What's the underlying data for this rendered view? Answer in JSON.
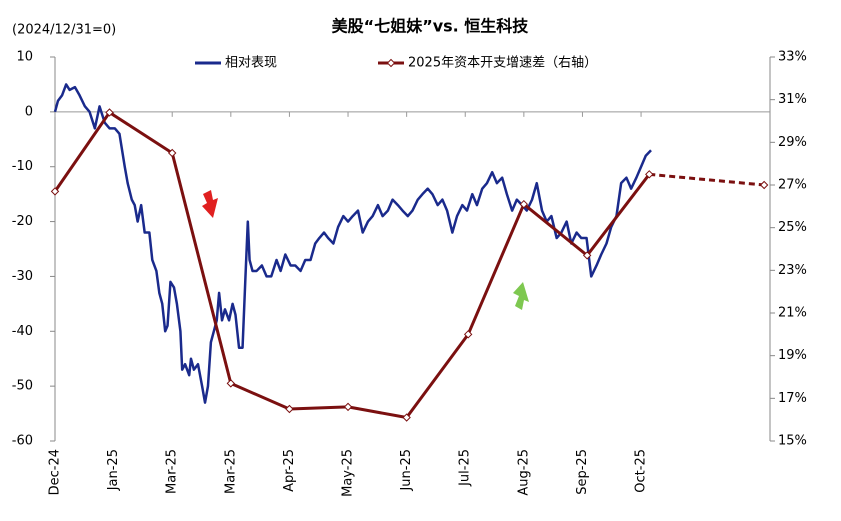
{
  "chart_data": {
    "type": "line",
    "title": "美股“七姐妹”vs. 恒生科技",
    "subtitle": "(2024/12/31=0)",
    "xlim": [
      0,
      12.2
    ],
    "xticks": [
      {
        "value": 0,
        "label": "Dec-24"
      },
      {
        "value": 1,
        "label": "Jan-25"
      },
      {
        "value": 2,
        "label": "Mar-25"
      },
      {
        "value": 3,
        "label": "Mar-25"
      },
      {
        "value": 4,
        "label": "Apr-25"
      },
      {
        "value": 5,
        "label": "May-25"
      },
      {
        "value": 6,
        "label": "Jun-25"
      },
      {
        "value": 7,
        "label": "Jul-25"
      },
      {
        "value": 8,
        "label": "Aug-25"
      },
      {
        "value": 9,
        "label": "Sep-25"
      },
      {
        "value": 10,
        "label": "Oct-25"
      }
    ],
    "ylim": [
      -60,
      10
    ],
    "yticks": [
      10,
      0,
      -10,
      -20,
      -30,
      -40,
      -50,
      -60
    ],
    "y2lim": [
      15,
      33
    ],
    "y2ticks": [
      {
        "value": 33,
        "label": "33%"
      },
      {
        "value": 31,
        "label": "31%"
      },
      {
        "value": 29,
        "label": "29%"
      },
      {
        "value": 27,
        "label": "27%"
      },
      {
        "value": 25,
        "label": "25%"
      },
      {
        "value": 23,
        "label": "23%"
      },
      {
        "value": 21,
        "label": "21%"
      },
      {
        "value": 19,
        "label": "19%"
      },
      {
        "value": 17,
        "label": "17%"
      },
      {
        "value": 15,
        "label": "15%"
      }
    ],
    "series": [
      {
        "name": "相对表现",
        "color": "#1a2a8c",
        "x": [
          0,
          0.05,
          0.12,
          0.19,
          0.25,
          0.34,
          0.42,
          0.51,
          0.59,
          0.68,
          0.76,
          0.85,
          0.93,
          1.02,
          1.1,
          1.19,
          1.24,
          1.31,
          1.36,
          1.41,
          1.47,
          1.53,
          1.61,
          1.66,
          1.73,
          1.78,
          1.83,
          1.88,
          1.92,
          1.97,
          2.03,
          2.08,
          2.14,
          2.17,
          2.22,
          2.29,
          2.32,
          2.37,
          2.44,
          2.51,
          2.56,
          2.61,
          2.66,
          2.71,
          2.76,
          2.8,
          2.85,
          2.9,
          2.97,
          3.03,
          3.08,
          3.14,
          3.2,
          3.25,
          3.29,
          3.32,
          3.37,
          3.44,
          3.53,
          3.61,
          3.69,
          3.78,
          3.85,
          3.93,
          4.02,
          4.1,
          4.19,
          4.27,
          4.36,
          4.44,
          4.51,
          4.59,
          4.66,
          4.75,
          4.83,
          4.92,
          5.0,
          5.08,
          5.17,
          5.25,
          5.34,
          5.42,
          5.51,
          5.59,
          5.68,
          5.76,
          5.85,
          5.93,
          6.02,
          6.1,
          6.19,
          6.27,
          6.36,
          6.44,
          6.53,
          6.61,
          6.69,
          6.78,
          6.86,
          6.95,
          7.03,
          7.12,
          7.2,
          7.29,
          7.37,
          7.46,
          7.54,
          7.63,
          7.71,
          7.8,
          7.88,
          7.97,
          8.05,
          8.14,
          8.22,
          8.31,
          8.39,
          8.47,
          8.56,
          8.64,
          8.73,
          8.81,
          8.9,
          8.98,
          9.07,
          9.15,
          9.24,
          9.32,
          9.41,
          9.49,
          9.58,
          9.66,
          9.75,
          9.83,
          9.92,
          10.0,
          10.08,
          10.17
        ],
        "values": [
          0,
          2,
          3,
          5,
          4,
          4.5,
          3,
          1,
          0,
          -3,
          1,
          -2,
          -3,
          -3,
          -4,
          -10,
          -13,
          -16,
          -17,
          -20,
          -17,
          -22,
          -22,
          -27,
          -29,
          -33,
          -35,
          -40,
          -39,
          -31,
          -32,
          -35,
          -40,
          -47,
          -46,
          -48,
          -45,
          -47,
          -46,
          -50,
          -53,
          -50,
          -42,
          -40,
          -38,
          -33,
          -38,
          -36,
          -38,
          -35,
          -37,
          -43,
          -43,
          -30,
          -20,
          -27,
          -29,
          -29,
          -28,
          -30,
          -30,
          -27,
          -29,
          -26,
          -28,
          -28,
          -29,
          -27,
          -27,
          -24,
          -23,
          -22,
          -23,
          -24,
          -21,
          -19,
          -20,
          -19,
          -18,
          -22,
          -20,
          -19,
          -17,
          -19,
          -18,
          -16,
          -17,
          -18,
          -19,
          -18,
          -16,
          -15,
          -14,
          -15,
          -17,
          -16,
          -18,
          -22,
          -19,
          -17,
          -18,
          -15,
          -17,
          -14,
          -13,
          -11,
          -13,
          -12,
          -15,
          -18,
          -16,
          -17,
          -18,
          -16,
          -13,
          -18,
          -20,
          -19,
          -23,
          -22,
          -20,
          -24,
          -22,
          -23,
          -23,
          -30,
          -28,
          -26,
          -24,
          -21,
          -19,
          -13,
          -12,
          -14,
          -12,
          -10,
          -8,
          -7
        ]
      },
      {
        "name": "2025年资本开支增速差（右轴）",
        "color": "#7b1010",
        "axis": "y2",
        "marker": "diamond",
        "dash_from": 10,
        "x": [
          0,
          0.93,
          2.0,
          3.0,
          4.0,
          5.0,
          6.0,
          7.05,
          8.0,
          9.08,
          10.14,
          12.1
        ],
        "values": [
          26.7,
          30.4,
          28.5,
          17.7,
          16.5,
          16.6,
          16.1,
          20.0,
          26.1,
          23.7,
          27.5,
          27.0
        ]
      }
    ]
  }
}
